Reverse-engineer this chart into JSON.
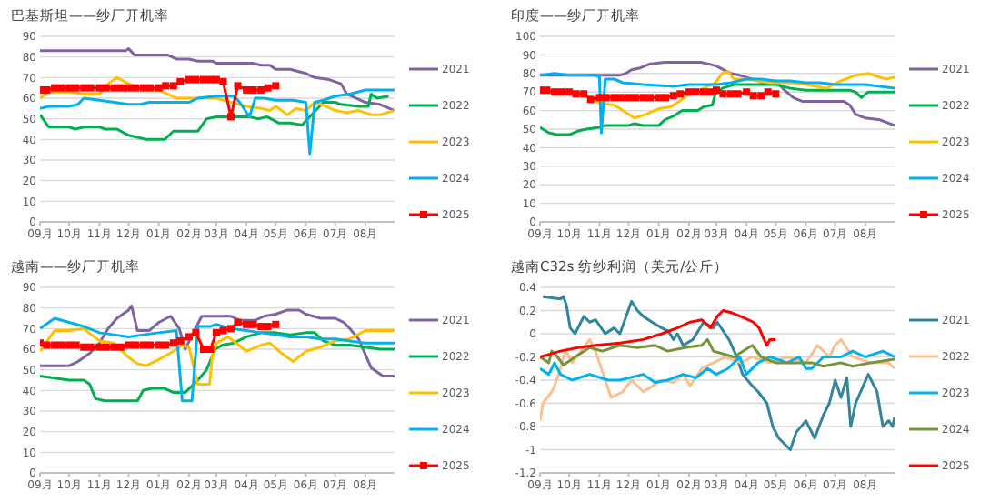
{
  "chart_data": [
    {
      "type": "line",
      "title": "巴基斯坦——纱厂开机率",
      "xlim": [
        "2024-09-01",
        "2025-08-31"
      ],
      "xticks": [
        {
          "value": "2024-09-01",
          "label": "09月"
        },
        {
          "value": "2024-10-01",
          "label": "10月"
        },
        {
          "value": "2024-11-01",
          "label": "11月"
        },
        {
          "value": "2024-12-01",
          "label": "12月"
        },
        {
          "value": "2025-01-01",
          "label": "01月"
        },
        {
          "value": "2025-02-01",
          "label": "02月"
        },
        {
          "value": "2025-03-01",
          "label": "03月"
        },
        {
          "value": "2025-04-01",
          "label": "04月"
        },
        {
          "value": "2025-05-01",
          "label": "05月"
        },
        {
          "value": "2025-06-01",
          "label": "06月"
        },
        {
          "value": "2025-07-01",
          "label": "07月"
        },
        {
          "value": "2025-08-01",
          "label": "08月"
        }
      ],
      "ylim": [
        0,
        90
      ],
      "yticks": [
        0,
        10,
        20,
        30,
        40,
        50,
        60,
        70,
        80,
        90
      ],
      "grid": "y",
      "legend": "right",
      "series": [
        {
          "name": "2021",
          "color": "#8064a2",
          "x": [
            "2024-09-01",
            "2024-11-28",
            "2024-12-01",
            "2024-12-07",
            "2025-01-10",
            "2025-01-19",
            "2025-02-01",
            "2025-02-10",
            "2025-02-25",
            "2025-03-01",
            "2025-04-07",
            "2025-04-16",
            "2025-04-25",
            "2025-05-01",
            "2025-05-16",
            "2025-06-01",
            "2025-06-10",
            "2025-06-25",
            "2025-07-07",
            "2025-07-13",
            "2025-08-01",
            "2025-08-16",
            "2025-08-31"
          ],
          "values": [
            83,
            83,
            84,
            81,
            81,
            79,
            79,
            78,
            78,
            77,
            77,
            76,
            76,
            74,
            74,
            72,
            70,
            69,
            67,
            62,
            58,
            57,
            54
          ]
        },
        {
          "name": "2022",
          "color": "#00b050",
          "x": [
            "2024-09-01",
            "2024-09-10",
            "2024-10-01",
            "2024-10-07",
            "2024-10-16",
            "2024-11-01",
            "2024-11-07",
            "2024-11-19",
            "2024-12-01",
            "2024-12-19",
            "2025-01-07",
            "2025-01-16",
            "2025-02-10",
            "2025-02-19",
            "2025-03-01",
            "2025-04-04",
            "2025-04-13",
            "2025-04-22",
            "2025-05-04",
            "2025-05-16",
            "2025-05-28",
            "2025-06-13",
            "2025-06-19",
            "2025-07-01",
            "2025-07-07",
            "2025-07-25",
            "2025-08-04",
            "2025-08-07",
            "2025-08-13",
            "2025-08-25"
          ],
          "values": [
            52,
            46,
            46,
            45,
            46,
            46,
            45,
            45,
            42,
            40,
            40,
            44,
            44,
            50,
            51,
            51,
            50,
            51,
            48,
            48,
            47,
            55,
            58,
            58,
            57,
            56,
            56,
            62,
            60,
            61
          ]
        },
        {
          "name": "2023",
          "color": "#ffc000",
          "x": [
            "2024-09-01",
            "2024-09-10",
            "2024-10-01",
            "2024-10-16",
            "2024-11-01",
            "2024-11-10",
            "2024-11-19",
            "2024-12-01",
            "2024-12-16",
            "2025-01-01",
            "2025-01-10",
            "2025-01-19",
            "2025-02-01",
            "2025-03-01",
            "2025-03-16",
            "2025-04-01",
            "2025-04-16",
            "2025-04-25",
            "2025-05-01",
            "2025-05-13",
            "2025-05-22",
            "2025-06-01",
            "2025-06-10",
            "2025-06-22",
            "2025-07-01",
            "2025-07-13",
            "2025-07-25",
            "2025-08-07",
            "2025-08-16",
            "2025-08-31"
          ],
          "values": [
            60,
            63,
            63,
            62,
            62,
            67,
            70,
            67,
            64,
            64,
            62,
            60,
            60,
            60,
            58,
            56,
            55,
            54,
            56,
            52,
            55,
            54,
            58,
            56,
            54,
            53,
            54,
            52,
            52,
            54
          ]
        },
        {
          "name": "2024",
          "color": "#00b0f0",
          "x": [
            "2024-09-01",
            "2024-09-10",
            "2024-10-01",
            "2024-10-10",
            "2024-10-16",
            "2024-11-01",
            "2024-11-16",
            "2024-12-01",
            "2024-12-13",
            "2024-12-22",
            "2025-02-01",
            "2025-02-10",
            "2025-03-01",
            "2025-03-19",
            "2025-03-25",
            "2025-04-04",
            "2025-04-10",
            "2025-04-19",
            "2025-05-01",
            "2025-05-19",
            "2025-06-01",
            "2025-06-05",
            "2025-06-10",
            "2025-06-19",
            "2025-07-01",
            "2025-07-16",
            "2025-08-01",
            "2025-08-31"
          ],
          "values": [
            55,
            56,
            56,
            57,
            60,
            59,
            58,
            57,
            57,
            58,
            58,
            60,
            61,
            61,
            58,
            51,
            60,
            60,
            59,
            59,
            58,
            33,
            58,
            59,
            61,
            62,
            64,
            64
          ]
        },
        {
          "name": "2025",
          "color": "#ff0000",
          "marker": "square",
          "x": [
            "2024-09-01",
            "2024-09-08",
            "2024-09-16",
            "2024-09-23",
            "2024-10-01",
            "2024-10-08",
            "2024-10-16",
            "2024-10-23",
            "2024-11-01",
            "2024-11-08",
            "2024-11-16",
            "2024-11-23",
            "2024-12-01",
            "2024-12-08",
            "2024-12-16",
            "2024-12-23",
            "2025-01-01",
            "2025-01-08",
            "2025-01-16",
            "2025-01-23",
            "2025-02-01",
            "2025-02-08",
            "2025-02-16",
            "2025-02-23",
            "2025-03-01",
            "2025-03-08",
            "2025-03-16",
            "2025-03-23",
            "2025-04-01",
            "2025-04-08",
            "2025-04-16",
            "2025-04-23",
            "2025-05-01"
          ],
          "values": [
            64,
            64,
            65,
            65,
            65,
            65,
            65,
            65,
            65,
            65,
            65,
            65,
            65,
            65,
            65,
            65,
            65,
            66,
            66,
            68,
            69,
            69,
            69,
            69,
            69,
            68,
            51,
            66,
            64,
            64,
            64,
            65,
            66
          ]
        }
      ]
    },
    {
      "type": "line",
      "title": "印度——纱厂开机率",
      "xlim": [
        "2024-09-01",
        "2025-08-31"
      ],
      "xticks": [
        {
          "value": "2024-09-01",
          "label": "09月"
        },
        {
          "value": "2024-10-01",
          "label": "10月"
        },
        {
          "value": "2024-11-01",
          "label": "11月"
        },
        {
          "value": "2024-12-01",
          "label": "12月"
        },
        {
          "value": "2025-01-01",
          "label": "01月"
        },
        {
          "value": "2025-02-01",
          "label": "02月"
        },
        {
          "value": "2025-03-01",
          "label": "03月"
        },
        {
          "value": "2025-04-01",
          "label": "04月"
        },
        {
          "value": "2025-05-01",
          "label": "05月"
        },
        {
          "value": "2025-06-01",
          "label": "06月"
        },
        {
          "value": "2025-07-01",
          "label": "07月"
        },
        {
          "value": "2025-08-01",
          "label": "08月"
        }
      ],
      "ylim": [
        0,
        100
      ],
      "yticks": [
        0,
        10,
        20,
        30,
        40,
        50,
        60,
        70,
        80,
        90,
        100
      ],
      "grid": "y",
      "legend": "right",
      "series": [
        {
          "name": "2021",
          "color": "#8064a2",
          "x": [
            "2024-09-01",
            "2024-11-22",
            "2024-11-28",
            "2024-12-04",
            "2024-12-13",
            "2024-12-22",
            "2025-01-07",
            "2025-02-13",
            "2025-02-22",
            "2025-03-01",
            "2025-03-16",
            "2025-03-25",
            "2025-04-07",
            "2025-04-19",
            "2025-05-01",
            "2025-05-10",
            "2025-05-19",
            "2025-05-28",
            "2025-07-10",
            "2025-07-16",
            "2025-07-22",
            "2025-08-01",
            "2025-08-16",
            "2025-08-31"
          ],
          "values": [
            79,
            79,
            80,
            82,
            83,
            85,
            86,
            86,
            85,
            84,
            80,
            79,
            77,
            75,
            76,
            71,
            67,
            65,
            65,
            63,
            58,
            56,
            55,
            52
          ]
        },
        {
          "name": "2022",
          "color": "#00b050",
          "x": [
            "2024-09-01",
            "2024-09-10",
            "2024-09-19",
            "2024-10-01",
            "2024-10-10",
            "2024-10-19",
            "2024-11-01",
            "2024-11-07",
            "2024-12-01",
            "2024-12-07",
            "2024-12-16",
            "2025-01-01",
            "2025-01-07",
            "2025-01-16",
            "2025-01-25",
            "2025-02-10",
            "2025-02-16",
            "2025-02-25",
            "2025-02-28",
            "2025-03-07",
            "2025-03-19",
            "2025-04-01",
            "2025-04-16",
            "2025-05-01",
            "2025-05-16",
            "2025-06-01",
            "2025-07-01",
            "2025-07-16",
            "2025-07-22",
            "2025-07-28",
            "2025-08-04",
            "2025-08-31"
          ],
          "values": [
            51,
            48,
            47,
            47,
            49,
            50,
            51,
            52,
            52,
            53,
            52,
            52,
            55,
            57,
            60,
            60,
            62,
            63,
            69,
            72,
            74,
            74,
            74,
            74,
            72,
            71,
            71,
            71,
            70,
            67,
            70,
            70
          ]
        },
        {
          "name": "2023",
          "color": "#ffc000",
          "x": [
            "2024-10-16",
            "2024-10-22",
            "2024-11-01",
            "2024-11-16",
            "2024-11-25",
            "2024-12-07",
            "2024-12-19",
            "2025-01-01",
            "2025-01-13",
            "2025-01-22",
            "2025-02-01",
            "2025-02-16",
            "2025-02-28",
            "2025-03-07",
            "2025-03-13",
            "2025-03-19",
            "2025-04-01",
            "2025-04-13",
            "2025-04-25",
            "2025-05-16",
            "2025-06-01",
            "2025-06-22",
            "2025-07-07",
            "2025-07-22",
            "2025-08-04",
            "2025-08-22",
            "2025-08-31"
          ],
          "values": [
            69,
            67,
            64,
            63,
            60,
            56,
            58,
            61,
            62,
            65,
            69,
            72,
            75,
            80,
            81,
            77,
            77,
            76,
            75,
            75,
            74,
            72,
            76,
            79,
            80,
            77,
            78
          ]
        },
        {
          "name": "2024",
          "color": "#00b0f0",
          "x": [
            "2024-09-01",
            "2024-09-16",
            "2024-10-01",
            "2024-10-28",
            "2024-11-01",
            "2024-11-03",
            "2024-11-07",
            "2024-11-16",
            "2024-11-25",
            "2024-12-16",
            "2025-01-16",
            "2025-02-01",
            "2025-03-01",
            "2025-03-16",
            "2025-04-01",
            "2025-04-16",
            "2025-05-01",
            "2025-05-16",
            "2025-06-01",
            "2025-06-16",
            "2025-07-01",
            "2025-08-01",
            "2025-08-16",
            "2025-08-31"
          ],
          "values": [
            79,
            80,
            79,
            79,
            78,
            48,
            77,
            77,
            75,
            74,
            73,
            74,
            74,
            75,
            77,
            77,
            76,
            76,
            75,
            75,
            74,
            74,
            73,
            72
          ]
        },
        {
          "name": "2025",
          "color": "#ff0000",
          "marker": "square",
          "x": [
            "2024-09-01",
            "2024-09-08",
            "2024-09-16",
            "2024-09-23",
            "2024-10-01",
            "2024-10-08",
            "2024-10-16",
            "2024-10-23",
            "2024-11-01",
            "2024-11-08",
            "2024-11-16",
            "2024-11-23",
            "2024-12-01",
            "2024-12-08",
            "2024-12-16",
            "2024-12-23",
            "2025-01-01",
            "2025-01-08",
            "2025-01-16",
            "2025-01-23",
            "2025-02-01",
            "2025-02-08",
            "2025-02-16",
            "2025-02-23",
            "2025-03-01",
            "2025-03-08",
            "2025-03-16",
            "2025-03-23",
            "2025-04-01",
            "2025-04-08",
            "2025-04-16",
            "2025-04-23",
            "2025-05-01"
          ],
          "values": [
            71,
            71,
            70,
            70,
            70,
            69,
            69,
            66,
            67,
            67,
            67,
            67,
            67,
            67,
            67,
            67,
            67,
            67,
            68,
            69,
            70,
            70,
            70,
            70,
            71,
            69,
            69,
            69,
            70,
            68,
            68,
            70,
            69
          ]
        }
      ]
    },
    {
      "type": "line",
      "title": "越南——纱厂开机率",
      "xlim": [
        "2024-09-01",
        "2025-08-31"
      ],
      "xticks": [
        {
          "value": "2024-09-01",
          "label": "09月"
        },
        {
          "value": "2024-10-01",
          "label": "10月"
        },
        {
          "value": "2024-11-01",
          "label": "11月"
        },
        {
          "value": "2024-12-01",
          "label": "12月"
        },
        {
          "value": "2025-01-01",
          "label": "01月"
        },
        {
          "value": "2025-02-01",
          "label": "02月"
        },
        {
          "value": "2025-03-01",
          "label": "03月"
        },
        {
          "value": "2025-04-01",
          "label": "04月"
        },
        {
          "value": "2025-05-01",
          "label": "05月"
        },
        {
          "value": "2025-06-01",
          "label": "06月"
        },
        {
          "value": "2025-07-01",
          "label": "07月"
        },
        {
          "value": "2025-08-01",
          "label": "08月"
        }
      ],
      "ylim": [
        0,
        90
      ],
      "yticks": [
        0,
        10,
        20,
        30,
        40,
        50,
        60,
        70,
        80,
        90
      ],
      "grid": "y",
      "legend": "right",
      "series": [
        {
          "name": "2021",
          "color": "#8064a2",
          "x": [
            "2024-09-01",
            "2024-10-01",
            "2024-10-10",
            "2024-10-22",
            "2024-11-01",
            "2024-11-10",
            "2024-11-19",
            "2024-12-01",
            "2024-12-04",
            "2024-12-10",
            "2024-12-22",
            "2025-01-01",
            "2025-01-13",
            "2025-01-22",
            "2025-01-28",
            "2025-02-14",
            "2025-03-01",
            "2025-03-16",
            "2025-03-25",
            "2025-04-10",
            "2025-04-19",
            "2025-05-01",
            "2025-05-13",
            "2025-05-25",
            "2025-06-01",
            "2025-06-16",
            "2025-07-01",
            "2025-07-10",
            "2025-07-16",
            "2025-07-25",
            "2025-08-07",
            "2025-08-19",
            "2025-08-31"
          ],
          "values": [
            52,
            52,
            54,
            58,
            63,
            70,
            75,
            79,
            81,
            69,
            69,
            73,
            76,
            70,
            60,
            76,
            76,
            76,
            74,
            74,
            76,
            77,
            79,
            79,
            77,
            75,
            75,
            73,
            70,
            65,
            51,
            47,
            47
          ]
        },
        {
          "name": "2022",
          "color": "#00b050",
          "x": [
            "2024-09-01",
            "2024-09-16",
            "2024-10-01",
            "2024-10-16",
            "2024-10-22",
            "2024-10-28",
            "2024-11-07",
            "2024-12-01",
            "2024-12-10",
            "2024-12-16",
            "2024-12-25",
            "2025-01-07",
            "2025-01-16",
            "2025-01-28",
            "2025-02-10",
            "2025-02-19",
            "2025-02-28",
            "2025-03-07",
            "2025-03-19",
            "2025-04-01",
            "2025-04-16",
            "2025-05-01",
            "2025-05-16",
            "2025-06-01",
            "2025-06-10",
            "2025-06-19",
            "2025-07-01",
            "2025-07-16",
            "2025-08-01",
            "2025-08-16",
            "2025-08-31"
          ],
          "values": [
            47,
            46,
            45,
            45,
            43,
            36,
            35,
            35,
            35,
            40,
            41,
            41,
            39,
            39,
            45,
            50,
            60,
            62,
            63,
            66,
            68,
            68,
            67,
            68,
            68,
            64,
            62,
            62,
            61,
            60,
            60
          ]
        },
        {
          "name": "2023",
          "color": "#ffc000",
          "x": [
            "2024-09-01",
            "2024-09-07",
            "2024-09-16",
            "2024-10-01",
            "2024-10-16",
            "2024-11-01",
            "2024-11-16",
            "2024-12-01",
            "2024-12-10",
            "2024-12-19",
            "2025-01-01",
            "2025-01-16",
            "2025-01-25",
            "2025-02-01",
            "2025-02-04",
            "2025-02-10",
            "2025-02-22",
            "2025-02-25",
            "2025-03-01",
            "2025-03-13",
            "2025-04-01",
            "2025-04-16",
            "2025-04-25",
            "2025-05-07",
            "2025-05-19",
            "2025-06-01",
            "2025-06-16",
            "2025-07-01",
            "2025-07-16",
            "2025-08-01",
            "2025-08-16",
            "2025-08-31"
          ],
          "values": [
            59,
            63,
            69,
            69,
            70,
            64,
            63,
            56,
            53,
            52,
            55,
            59,
            62,
            61,
            55,
            43,
            43,
            57,
            63,
            66,
            59,
            62,
            63,
            58,
            54,
            59,
            61,
            64,
            65,
            69,
            69,
            69
          ]
        },
        {
          "name": "2024",
          "color": "#00b0f0",
          "x": [
            "2024-09-01",
            "2024-09-16",
            "2024-10-01",
            "2024-10-16",
            "2024-11-01",
            "2024-11-16",
            "2024-12-01",
            "2024-12-16",
            "2025-01-01",
            "2025-01-19",
            "2025-01-25",
            "2025-02-04",
            "2025-02-10",
            "2025-02-22",
            "2025-03-01",
            "2025-03-16",
            "2025-04-01",
            "2025-04-16",
            "2025-05-01",
            "2025-05-16",
            "2025-06-01",
            "2025-06-16",
            "2025-07-01",
            "2025-07-16",
            "2025-08-01",
            "2025-08-31"
          ],
          "values": [
            70,
            75,
            73,
            71,
            68,
            67,
            66,
            67,
            68,
            69,
            35,
            35,
            71,
            71,
            72,
            70,
            69,
            68,
            67,
            66,
            66,
            65,
            65,
            64,
            63,
            63
          ]
        },
        {
          "name": "2025",
          "color": "#ff0000",
          "marker": "square",
          "x": [
            "2024-09-01",
            "2024-09-08",
            "2024-09-16",
            "2024-09-23",
            "2024-10-01",
            "2024-10-08",
            "2024-10-16",
            "2024-10-23",
            "2024-11-01",
            "2024-11-08",
            "2024-11-16",
            "2024-11-23",
            "2024-12-01",
            "2024-12-08",
            "2024-12-16",
            "2024-12-23",
            "2025-01-01",
            "2025-01-08",
            "2025-01-16",
            "2025-01-23",
            "2025-02-01",
            "2025-02-08",
            "2025-02-16",
            "2025-02-23",
            "2025-03-01",
            "2025-03-08",
            "2025-03-16",
            "2025-03-23",
            "2025-04-01",
            "2025-04-08",
            "2025-04-16",
            "2025-04-23",
            "2025-05-01"
          ],
          "values": [
            63,
            62,
            62,
            62,
            62,
            62,
            61,
            61,
            61,
            61,
            61,
            61,
            62,
            62,
            62,
            62,
            62,
            62,
            63,
            64,
            66,
            68,
            60,
            60,
            68,
            69,
            70,
            73,
            72,
            72,
            71,
            71,
            72
          ]
        }
      ]
    },
    {
      "type": "line",
      "title": "越南C32s 纺纱利润（美元/公斤）",
      "xlim": [
        "2024-09-01",
        "2025-08-31"
      ],
      "xticks": [
        {
          "value": "2024-09-01",
          "label": "09月"
        },
        {
          "value": "2024-10-01",
          "label": "10月"
        },
        {
          "value": "2024-11-01",
          "label": "11月"
        },
        {
          "value": "2024-12-01",
          "label": "12月"
        },
        {
          "value": "2025-01-01",
          "label": "01月"
        },
        {
          "value": "2025-02-01",
          "label": "02月"
        },
        {
          "value": "2025-03-01",
          "label": "03月"
        },
        {
          "value": "2025-04-01",
          "label": "04月"
        },
        {
          "value": "2025-05-01",
          "label": "05月"
        },
        {
          "value": "2025-06-01",
          "label": "06月"
        },
        {
          "value": "2025-07-01",
          "label": "07月"
        },
        {
          "value": "2025-08-01",
          "label": "08月"
        }
      ],
      "ylim": [
        -1.2,
        0.4
      ],
      "yticks": [
        -1.2,
        -1,
        -0.8,
        -0.6,
        -0.4,
        -0.2,
        0,
        0.2,
        0.4
      ],
      "grid": "y",
      "legend": "right",
      "series": [
        {
          "name": "2021",
          "color": "#31859c",
          "x": [
            "2024-09-04",
            "2024-09-22",
            "2024-09-25",
            "2024-09-28",
            "2024-10-02",
            "2024-10-07",
            "2024-10-16",
            "2024-10-22",
            "2024-10-28",
            "2024-11-07",
            "2024-11-16",
            "2024-11-22",
            "2024-12-04",
            "2024-12-10",
            "2024-12-16",
            "2024-12-25",
            "2025-01-04",
            "2025-01-11",
            "2025-01-16",
            "2025-01-20",
            "2025-01-26",
            "2025-02-05",
            "2025-02-16",
            "2025-02-26",
            "2025-03-02",
            "2025-03-14",
            "2025-03-22",
            "2025-03-28",
            "2025-04-07",
            "2025-04-13",
            "2025-04-22",
            "2025-04-28",
            "2025-05-04",
            "2025-05-16",
            "2025-05-22",
            "2025-06-01",
            "2025-06-10",
            "2025-06-19",
            "2025-06-25",
            "2025-07-01",
            "2025-07-07",
            "2025-07-13",
            "2025-07-17",
            "2025-07-22",
            "2025-08-04",
            "2025-08-13",
            "2025-08-19",
            "2025-08-25",
            "2025-08-29",
            "2025-08-31"
          ],
          "values": [
            0.32,
            0.3,
            0.32,
            0.25,
            0.05,
            0,
            0.15,
            0.1,
            0.12,
            0,
            0.05,
            0,
            0.28,
            0.2,
            0.15,
            0.1,
            0.05,
            0.02,
            -0.05,
            0,
            -0.1,
            -0.05,
            0.1,
            0.05,
            0.1,
            -0.05,
            -0.2,
            -0.35,
            -0.45,
            -0.5,
            -0.6,
            -0.8,
            -0.9,
            -1,
            -0.85,
            -0.75,
            -0.9,
            -0.7,
            -0.6,
            -0.4,
            -0.55,
            -0.38,
            -0.8,
            -0.6,
            -0.35,
            -0.5,
            -0.8,
            -0.75,
            -0.8,
            -0.72
          ]
        },
        {
          "name": "2022",
          "color": "#fac090",
          "x": [
            "2024-09-01",
            "2024-09-04",
            "2024-09-13",
            "2024-09-16",
            "2024-09-22",
            "2024-09-25",
            "2024-09-28",
            "2024-10-04",
            "2024-10-13",
            "2024-10-22",
            "2024-10-28",
            "2024-11-07",
            "2024-11-13",
            "2024-11-25",
            "2024-12-04",
            "2024-12-16",
            "2025-01-04",
            "2025-01-16",
            "2025-01-26",
            "2025-02-02",
            "2025-02-14",
            "2025-02-26",
            "2025-03-11",
            "2025-03-26",
            "2025-04-07",
            "2025-04-25",
            "2025-05-13",
            "2025-06-01",
            "2025-06-13",
            "2025-06-25",
            "2025-07-01",
            "2025-07-07",
            "2025-07-19",
            "2025-08-07",
            "2025-08-25",
            "2025-08-31"
          ],
          "values": [
            -0.75,
            -0.6,
            -0.5,
            -0.45,
            -0.3,
            -0.2,
            -0.15,
            -0.25,
            -0.15,
            -0.05,
            -0.15,
            -0.4,
            -0.55,
            -0.5,
            -0.4,
            -0.5,
            -0.4,
            -0.42,
            -0.35,
            -0.45,
            -0.3,
            -0.25,
            -0.2,
            -0.25,
            -0.2,
            -0.25,
            -0.2,
            -0.25,
            -0.1,
            -0.2,
            -0.1,
            -0.05,
            -0.2,
            -0.25,
            -0.25,
            -0.3
          ]
        },
        {
          "name": "2023",
          "color": "#00b0f0",
          "x": [
            "2024-09-01",
            "2024-09-10",
            "2024-09-16",
            "2024-09-22",
            "2024-10-04",
            "2024-10-22",
            "2024-11-10",
            "2024-11-22",
            "2024-12-16",
            "2024-12-28",
            "2025-01-10",
            "2025-01-26",
            "2025-02-08",
            "2025-02-20",
            "2025-03-01",
            "2025-03-13",
            "2025-03-25",
            "2025-04-01",
            "2025-04-13",
            "2025-04-25",
            "2025-05-13",
            "2025-05-25",
            "2025-06-01",
            "2025-06-07",
            "2025-06-19",
            "2025-07-07",
            "2025-07-19",
            "2025-08-01",
            "2025-08-19",
            "2025-08-31"
          ],
          "values": [
            -0.3,
            -0.35,
            -0.25,
            -0.35,
            -0.4,
            -0.35,
            -0.4,
            -0.4,
            -0.35,
            -0.42,
            -0.4,
            -0.35,
            -0.38,
            -0.3,
            -0.35,
            -0.3,
            -0.2,
            -0.35,
            -0.25,
            -0.2,
            -0.25,
            -0.2,
            -0.3,
            -0.3,
            -0.2,
            -0.2,
            -0.15,
            -0.2,
            -0.15,
            -0.2
          ]
        },
        {
          "name": "2024",
          "color": "#77933c",
          "x": [
            "2024-09-01",
            "2024-09-10",
            "2024-09-13",
            "2024-09-19",
            "2024-09-25",
            "2024-10-07",
            "2024-10-22",
            "2024-11-04",
            "2024-11-22",
            "2024-12-10",
            "2024-12-28",
            "2025-01-10",
            "2025-01-28",
            "2025-02-14",
            "2025-02-20",
            "2025-02-26",
            "2025-03-19",
            "2025-04-07",
            "2025-04-16",
            "2025-05-01",
            "2025-05-19",
            "2025-06-07",
            "2025-06-19",
            "2025-07-07",
            "2025-07-19",
            "2025-08-07",
            "2025-08-31"
          ],
          "values": [
            -0.2,
            -0.25,
            -0.15,
            -0.2,
            -0.27,
            -0.2,
            -0.12,
            -0.15,
            -0.1,
            -0.12,
            -0.1,
            -0.15,
            -0.12,
            -0.1,
            -0.05,
            -0.15,
            -0.2,
            -0.1,
            -0.2,
            -0.25,
            -0.25,
            -0.25,
            -0.28,
            -0.25,
            -0.28,
            -0.25,
            -0.22
          ]
        },
        {
          "name": "2025",
          "color": "#ff0000",
          "x": [
            "2024-09-01",
            "2024-09-22",
            "2024-10-10",
            "2024-10-28",
            "2024-11-22",
            "2024-12-16",
            "2025-01-04",
            "2025-01-20",
            "2025-02-02",
            "2025-02-14",
            "2025-02-23",
            "2025-03-02",
            "2025-03-08",
            "2025-03-17",
            "2025-03-26",
            "2025-04-08",
            "2025-04-14",
            "2025-04-19",
            "2025-04-22",
            "2025-04-25",
            "2025-05-01"
          ],
          "values": [
            -0.2,
            -0.15,
            -0.12,
            -0.1,
            -0.08,
            -0.05,
            0,
            0.05,
            0.1,
            0.12,
            0.05,
            0.15,
            0.2,
            0.18,
            0.15,
            0.1,
            0.05,
            -0.05,
            -0.1,
            -0.05,
            -0.05
          ]
        }
      ]
    }
  ]
}
